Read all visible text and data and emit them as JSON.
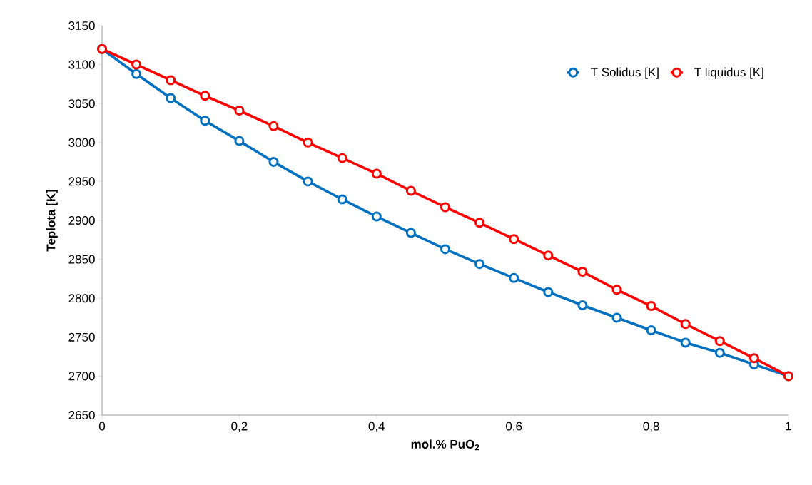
{
  "chart_data": {
    "type": "line",
    "xlabel": "mol.% PuO$_{2}$",
    "ylabel": "Teplota [K]",
    "x": [
      0,
      0.05,
      0.1,
      0.15,
      0.2,
      0.25,
      0.3,
      0.35,
      0.4,
      0.45,
      0.5,
      0.55,
      0.6,
      0.65,
      0.7,
      0.75,
      0.8,
      0.85,
      0.9,
      0.95,
      1
    ],
    "series": [
      {
        "name": "T Solidus [K]",
        "color": "#0070c0",
        "values": [
          3120,
          3088,
          3057,
          3028,
          3002,
          2975,
          2950,
          2927,
          2905,
          2884,
          2863,
          2844,
          2826,
          2808,
          2791,
          2775,
          2759,
          2743,
          2730,
          2715,
          2700
        ]
      },
      {
        "name": "T liquidus [K]",
        "color": "#ff0000",
        "values": [
          3120,
          3100,
          3080,
          3060,
          3041,
          3021,
          3000,
          2980,
          2960,
          2938,
          2917,
          2897,
          2876,
          2855,
          2834,
          2811,
          2790,
          2767,
          2745,
          2723,
          2700
        ]
      }
    ],
    "xlim": [
      0,
      1
    ],
    "ylim": [
      2650,
      3150
    ],
    "xticks": [
      0,
      {
        "value": 0.2,
        "label": "0,2"
      },
      {
        "value": 0.4,
        "label": "0,4"
      },
      {
        "value": 0.6,
        "label": "0,6"
      },
      {
        "value": 0.8,
        "label": "0,8"
      },
      1
    ],
    "yticks": [
      2650,
      2700,
      2750,
      2800,
      2850,
      2900,
      2950,
      3000,
      3050,
      3100,
      3150
    ],
    "grid": false,
    "legend": "top right",
    "marker": "circle",
    "line_style": "solid"
  }
}
